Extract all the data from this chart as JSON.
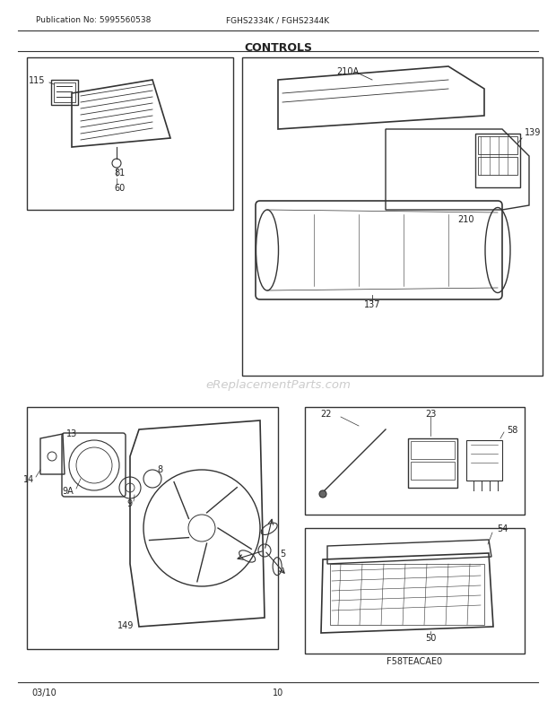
{
  "title": "CONTROLS",
  "pub_no": "Publication No: 5995560538",
  "model": "FGHS2334K / FGHS2344K",
  "date": "03/10",
  "page": "10",
  "watermark": "eReplacementParts.com",
  "parts_code": "F58TEACAE0",
  "bg_color": "#ffffff",
  "line_color": "#333333",
  "box_color": "#444444",
  "text_color": "#222222",
  "watermark_color": "#cccccc"
}
